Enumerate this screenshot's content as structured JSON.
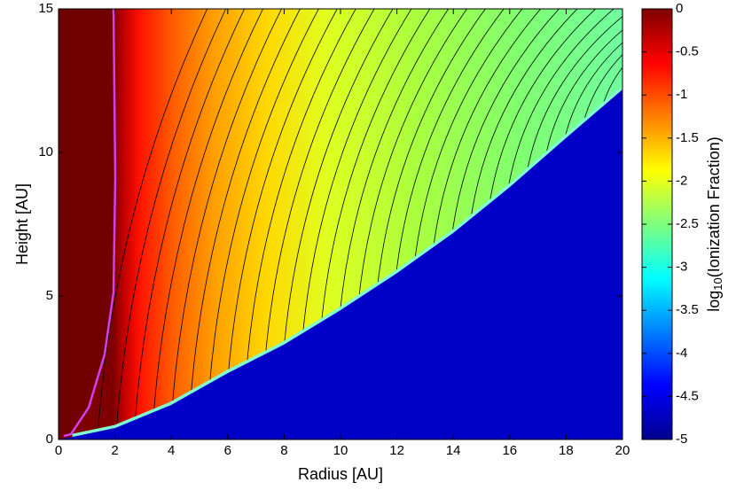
{
  "chart_data": {
    "type": "heatmap",
    "xlabel": "Radius [AU]",
    "ylabel": "Height [AU]",
    "xlim": [
      0,
      20
    ],
    "ylim": [
      0,
      15
    ],
    "xticks": [
      0,
      2,
      4,
      6,
      8,
      10,
      12,
      14,
      16,
      18,
      20
    ],
    "yticks": [
      0,
      5,
      10,
      15
    ],
    "colorbar": {
      "label": {
        "text": "log",
        "subscript": "10",
        "suffix": "(Ionization Fraction)"
      },
      "clim": [
        -5,
        0
      ],
      "ticks": [
        0,
        -0.5,
        -1,
        -1.5,
        -2,
        -2.5,
        -3,
        -3.5,
        -4,
        -4.5,
        -5
      ],
      "colormap": [
        "#00008f",
        "#0000ff",
        "#007fff",
        "#00ffff",
        "#7fff7f",
        "#ffff00",
        "#ff7f00",
        "#ff0000",
        "#7f0000"
      ]
    }
  }
}
